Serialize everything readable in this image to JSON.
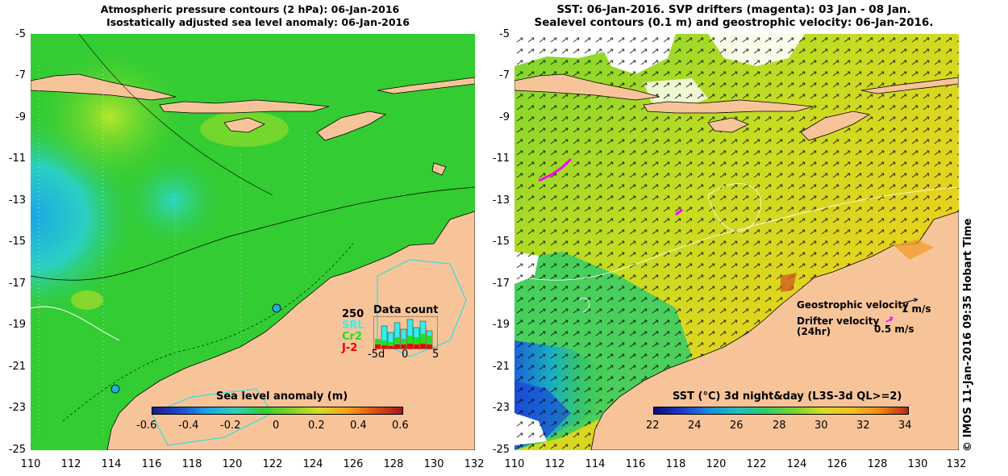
{
  "left_panel": {
    "title_line1": "Atmospheric pressure contours (2 hPa): 06-Jan-2016",
    "title_line2": "Isostatically adjusted sea level anomaly: 06-Jan-2016",
    "y_ticks": [
      "-5",
      "-7",
      "-9",
      "-11",
      "-13",
      "-15",
      "-17",
      "-19",
      "-21",
      "-23",
      "-25"
    ],
    "x_ticks": [
      "110",
      "112",
      "114",
      "116",
      "118",
      "120",
      "122",
      "124",
      "126",
      "128",
      "130",
      "132"
    ],
    "data_count": {
      "title": "Data count",
      "max_label": "250",
      "series": [
        {
          "name": "SRL",
          "color": "#33eeee"
        },
        {
          "name": "Cr2",
          "color": "#22dd22"
        },
        {
          "name": "J-2",
          "color": "#ee0000"
        }
      ],
      "x_labels": [
        "-5d",
        "0",
        "5"
      ]
    },
    "colorbar": {
      "label": "Sea level anomaly (m)",
      "ticks": [
        "-0.6",
        "-0.4",
        "-0.2",
        "0",
        "0.2",
        "0.4",
        "0.6"
      ]
    }
  },
  "right_panel": {
    "title_line1": "SST: 06-Jan-2016. SVP drifters (magenta): 03 Jan - 08 Jan.",
    "title_line2": "Sealevel contours (0.1 m) and geostrophic velocity: 06-Jan-2016.",
    "y_ticks": [
      "-5",
      "-7",
      "-9",
      "-11",
      "-13",
      "-15",
      "-17",
      "-19",
      "-21",
      "-23",
      "-25"
    ],
    "x_ticks": [
      "110",
      "112",
      "114",
      "116",
      "118",
      "120",
      "122",
      "124",
      "126",
      "128",
      "130",
      "132"
    ],
    "geo_velocity_label": "Geostrophic velocity",
    "geo_velocity_scale": "1 m/s",
    "drifter_label_line1": "Drifter velocity",
    "drifter_label_line2": "(24hr)",
    "drifter_scale": "0.5 m/s",
    "colorbar": {
      "label": "SST (°C) 3d night&day (L3S-3d QL>=2)",
      "ticks": [
        "22",
        "24",
        "26",
        "28",
        "30",
        "32",
        "34"
      ]
    }
  },
  "credit": "© IMOS 11-Jan-2016 09:35 Hobart Time",
  "colors": {
    "ocean_green": "#33cc33",
    "land": "#f7c49a",
    "sst_yellow": "#e8d21e",
    "drifter": "#ff00ff"
  }
}
